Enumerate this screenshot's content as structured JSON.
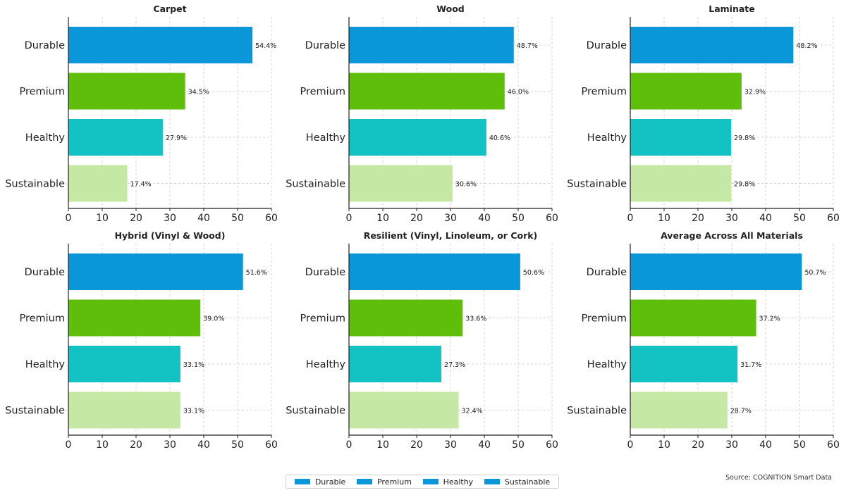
{
  "chart_data": [
    {
      "type": "bar",
      "orientation": "horizontal",
      "title": "Carpet",
      "categories": [
        "Durable",
        "Premium",
        "Healthy",
        "Sustainable"
      ],
      "values": [
        54.4,
        34.5,
        27.9,
        17.4
      ],
      "value_labels": [
        "54.4%",
        "34.5%",
        "27.9%",
        "17.4%"
      ],
      "xlim": [
        0,
        60
      ],
      "xticks": [
        "0",
        "10",
        "20",
        "30",
        "40",
        "50",
        "60"
      ],
      "grid": true
    },
    {
      "type": "bar",
      "orientation": "horizontal",
      "title": "Wood",
      "categories": [
        "Durable",
        "Premium",
        "Healthy",
        "Sustainable"
      ],
      "values": [
        48.7,
        46.0,
        40.6,
        30.6
      ],
      "value_labels": [
        "48.7%",
        "46.0%",
        "40.6%",
        "30.6%"
      ],
      "xlim": [
        0,
        60
      ],
      "xticks": [
        "0",
        "10",
        "20",
        "30",
        "40",
        "50",
        "60"
      ],
      "grid": true
    },
    {
      "type": "bar",
      "orientation": "horizontal",
      "title": "Laminate",
      "categories": [
        "Durable",
        "Premium",
        "Healthy",
        "Sustainable"
      ],
      "values": [
        48.2,
        32.9,
        29.8,
        29.8
      ],
      "value_labels": [
        "48.2%",
        "32.9%",
        "29.8%",
        "29.8%"
      ],
      "xlim": [
        0,
        60
      ],
      "xticks": [
        "0",
        "10",
        "20",
        "30",
        "40",
        "50",
        "60"
      ],
      "grid": true
    },
    {
      "type": "bar",
      "orientation": "horizontal",
      "title": "Hybrid (Vinyl & Wood)",
      "categories": [
        "Durable",
        "Premium",
        "Healthy",
        "Sustainable"
      ],
      "values": [
        51.6,
        39.0,
        33.1,
        33.1
      ],
      "value_labels": [
        "51.6%",
        "39.0%",
        "33.1%",
        "33.1%"
      ],
      "xlim": [
        0,
        60
      ],
      "xticks": [
        "0",
        "10",
        "20",
        "30",
        "40",
        "50",
        "60"
      ],
      "grid": true
    },
    {
      "type": "bar",
      "orientation": "horizontal",
      "title": "Resilient (Vinyl, Linoleum, or Cork)",
      "categories": [
        "Durable",
        "Premium",
        "Healthy",
        "Sustainable"
      ],
      "values": [
        50.6,
        33.6,
        27.3,
        32.4
      ],
      "value_labels": [
        "50.6%",
        "33.6%",
        "27.3%",
        "32.4%"
      ],
      "xlim": [
        0,
        60
      ],
      "xticks": [
        "0",
        "10",
        "20",
        "30",
        "40",
        "50",
        "60"
      ],
      "grid": true
    },
    {
      "type": "bar",
      "orientation": "horizontal",
      "title": "Average Across All Materials",
      "categories": [
        "Durable",
        "Premium",
        "Healthy",
        "Sustainable"
      ],
      "values": [
        50.7,
        37.2,
        31.7,
        28.7
      ],
      "value_labels": [
        "50.7%",
        "37.2%",
        "31.7%",
        "28.7%"
      ],
      "xlim": [
        0,
        60
      ],
      "xticks": [
        "0",
        "10",
        "20",
        "30",
        "40",
        "50",
        "60"
      ],
      "grid": true
    }
  ],
  "colors": {
    "Durable": "#0a97d9",
    "Premium": "#5fbe09",
    "Healthy": "#13c2c2",
    "Sustainable": "#c5e8a4",
    "legend_swatch": "#0a97d9"
  },
  "legend": {
    "items": [
      "Durable",
      "Premium",
      "Healthy",
      "Sustainable"
    ]
  },
  "source": "Source: COGNITION Smart Data"
}
